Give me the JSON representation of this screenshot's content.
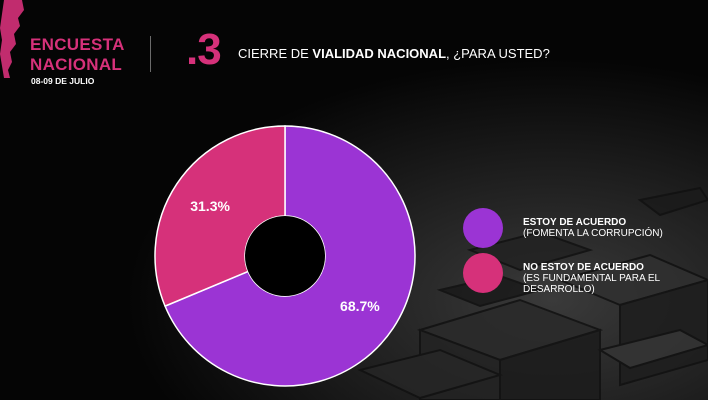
{
  "header": {
    "brand_line1": "ENCUESTA",
    "brand_line2": "NACIONAL",
    "date": "08-09 DE JULIO"
  },
  "question": {
    "number": ".3",
    "prefix": "CIERRE DE ",
    "emphasis": "VIALIDAD NACIONAL",
    "suffix": ", ¿PARA USTED?"
  },
  "colors": {
    "accent": "#d6317a",
    "purple": "#9b34d4",
    "pink": "#d6317a"
  },
  "chart_data": {
    "type": "pie",
    "donut": true,
    "slices": [
      {
        "label": "ESTOY DE ACUERDO",
        "sublabel": "(FOMENTA LA CORRUPCIÓN)",
        "value": 68.7,
        "display": "68.7%",
        "color": "#9b34d4"
      },
      {
        "label": "NO ESTOY DE ACUERDO",
        "sublabel": "(ES FUNDAMENTAL PARA EL DESARROLLO)",
        "value": 31.3,
        "display": "31.3%",
        "color": "#d6317a"
      }
    ],
    "legend_position": "right"
  }
}
